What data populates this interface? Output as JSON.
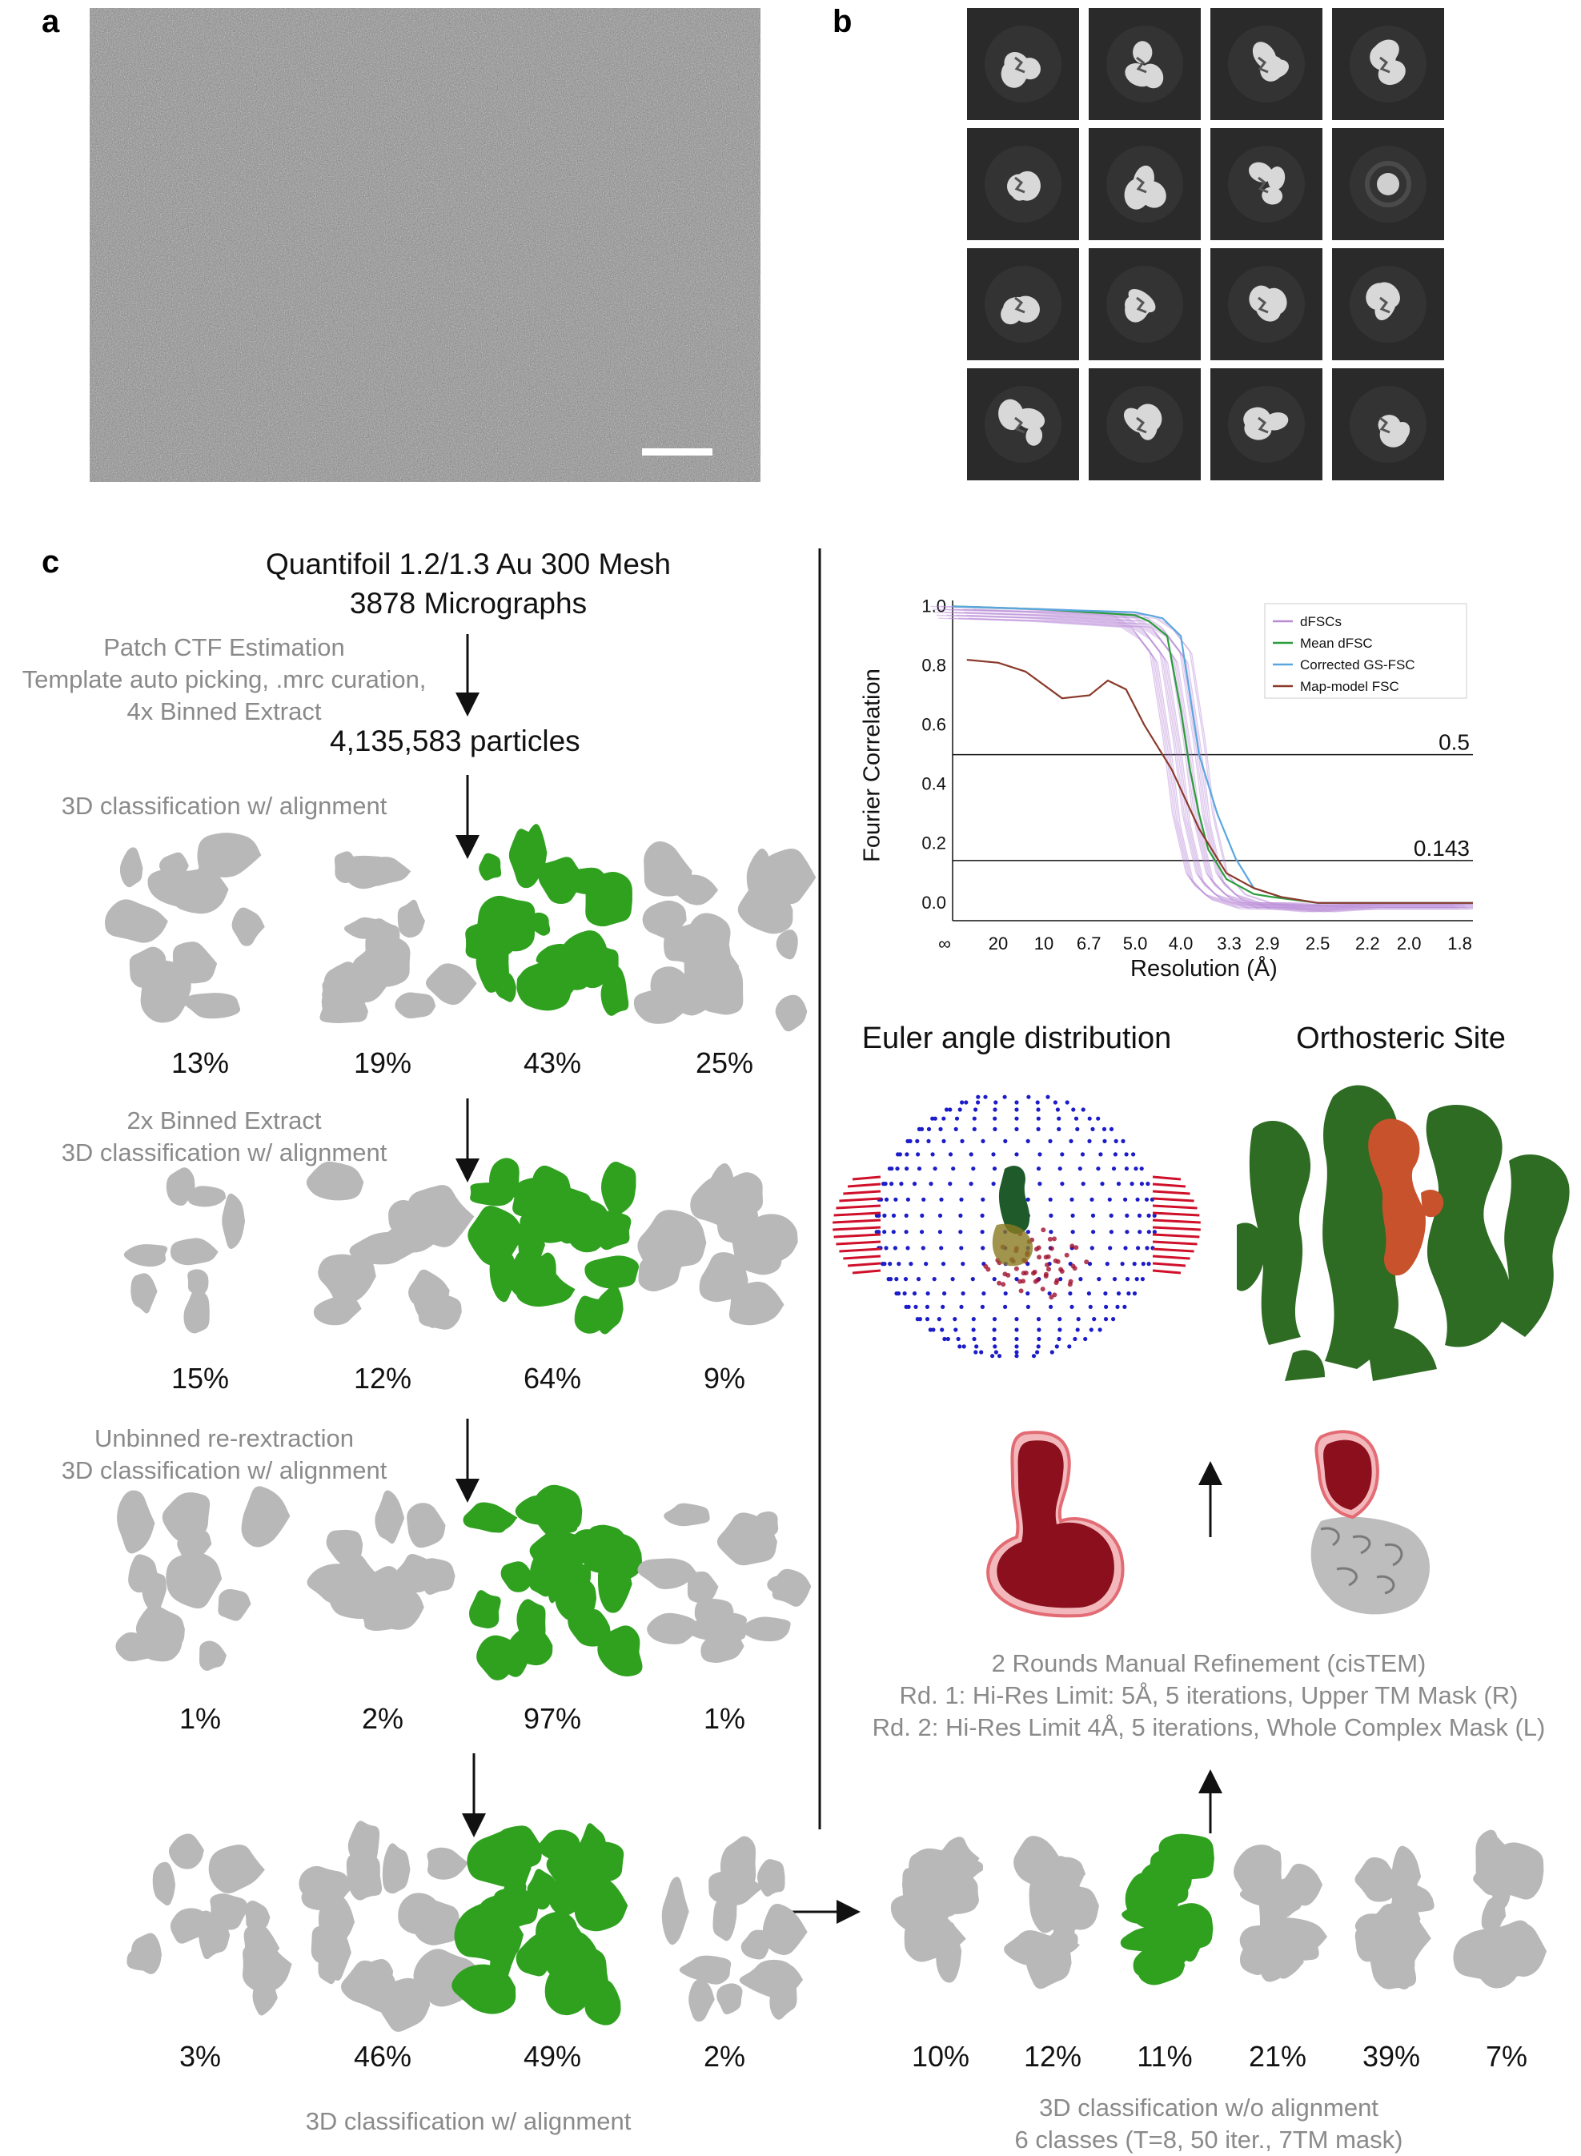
{
  "panels": {
    "a": "a",
    "b": "b",
    "c": "c"
  },
  "colors": {
    "accent_green": "#2fa11f",
    "dark_green": "#2e6b23",
    "ligand_orange": "#c8522c",
    "mask_red": "#c0182a",
    "density_gray": "#b8b8b8",
    "sphere_blue": "#1c1cc8",
    "curve_dfscs": "#b98ad6",
    "curve_mean_dfsc": "#2a9d3c",
    "curve_gsfsc": "#5aa7e0",
    "curve_map_model": "#8b3a2a"
  },
  "workflow": {
    "header_line1": "Quantifoil 1.2/1.3 Au 300 Mesh",
    "header_line2": "3878 Micrographs",
    "step1_line1": "Patch CTF Estimation",
    "step1_line2": "Template auto picking, .mrc curation,",
    "step1_line3": "4x Binned Extract",
    "particles": "4,135,583 particles",
    "step2": "3D classification w/ alignment",
    "row1": [
      "13%",
      "19%",
      "43%",
      "25%"
    ],
    "step3_line1": "2x Binned Extract",
    "step3_line2": "3D classification w/ alignment",
    "row2": [
      "15%",
      "12%",
      "64%",
      "9%"
    ],
    "step4_line1": "Unbinned re-rextraction",
    "step4_line2": "3D classification w/ alignment",
    "row3": [
      "1%",
      "2%",
      "97%",
      "1%"
    ],
    "row4": [
      "3%",
      "46%",
      "49%",
      "2%"
    ],
    "step5": "3D classification w/ alignment",
    "row5": [
      "10%",
      "12%",
      "11%",
      "21%",
      "39%",
      "7%"
    ],
    "step6_line1": "3D classification w/o alignment",
    "step6_line2": "6 classes (T=8, 50 iter., 7TM mask)",
    "refine_line1": "2 Rounds Manual Refinement (cisTEM)",
    "refine_line2": "Rd. 1: Hi-Res Limit: 5Å, 5 iterations, Upper TM Mask (R)",
    "refine_line3": "Rd. 2: Hi-Res Limit 4Å, 5 iterations, Whole Complex Mask (L)",
    "euler_title": "Euler angle distribution",
    "ortho_title": "Orthosteric Site"
  },
  "chart_data": {
    "type": "line",
    "ylabel": "Fourier Correlation",
    "xlabel": "Resolution (Å)",
    "x_tick_labels": [
      "∞",
      "20",
      "10",
      "6.7",
      "5.0",
      "4.0",
      "3.3",
      "2.9",
      "2.5",
      "2.2",
      "2.0",
      "1.8"
    ],
    "y_tick_labels": [
      "1.0",
      "0.8",
      "0.6",
      "0.4",
      "0.2",
      "0.0"
    ],
    "ylim": [
      -0.06,
      1.02
    ],
    "x_unit": "spatial frequency (1/Å)",
    "xlim": [
      0,
      0.57
    ],
    "thresholds": [
      {
        "value": 0.5,
        "label": "0.5"
      },
      {
        "value": 0.143,
        "label": "0.143"
      }
    ],
    "legend_position": "top-right",
    "series": [
      {
        "name": "dFSCs",
        "x": [
          0.0,
          0.1,
          0.2,
          0.22,
          0.24,
          0.255,
          0.265,
          0.28,
          0.3,
          0.33,
          0.36,
          0.4,
          0.45,
          0.5,
          0.57
        ],
        "y": [
          1.0,
          0.99,
          0.97,
          0.93,
          0.85,
          0.55,
          0.3,
          0.1,
          0.03,
          0.0,
          0.0,
          -0.01,
          0.0,
          0.0,
          0.0
        ]
      },
      {
        "name": "Mean dFSC",
        "x": [
          0.0,
          0.1,
          0.2,
          0.215,
          0.235,
          0.25,
          0.26,
          0.27,
          0.28,
          0.3,
          0.33,
          0.35,
          0.4,
          0.45,
          0.5,
          0.57
        ],
        "y": [
          1.0,
          0.99,
          0.97,
          0.95,
          0.9,
          0.65,
          0.45,
          0.3,
          0.18,
          0.08,
          0.03,
          0.02,
          0.0,
          0.0,
          0.0,
          0.0
        ]
      },
      {
        "name": "Corrected GS-FSC",
        "x": [
          0.0,
          0.1,
          0.2,
          0.23,
          0.25,
          0.27,
          0.29,
          0.31,
          0.33,
          0.36,
          0.4,
          0.45,
          0.5,
          0.57
        ],
        "y": [
          1.0,
          0.99,
          0.98,
          0.96,
          0.9,
          0.5,
          0.3,
          0.15,
          0.05,
          0.02,
          0.0,
          0.0,
          0.0,
          0.0
        ]
      },
      {
        "name": "Map-model FSC",
        "x": [
          0.0156,
          0.05,
          0.08,
          0.12,
          0.15,
          0.17,
          0.19,
          0.21,
          0.24,
          0.27,
          0.3,
          0.33,
          0.36,
          0.4,
          0.45,
          0.5,
          0.57
        ],
        "y": [
          0.82,
          0.81,
          0.78,
          0.69,
          0.7,
          0.75,
          0.72,
          0.6,
          0.45,
          0.25,
          0.1,
          0.05,
          0.02,
          0.0,
          0.0,
          0.0,
          0.0
        ]
      }
    ]
  }
}
